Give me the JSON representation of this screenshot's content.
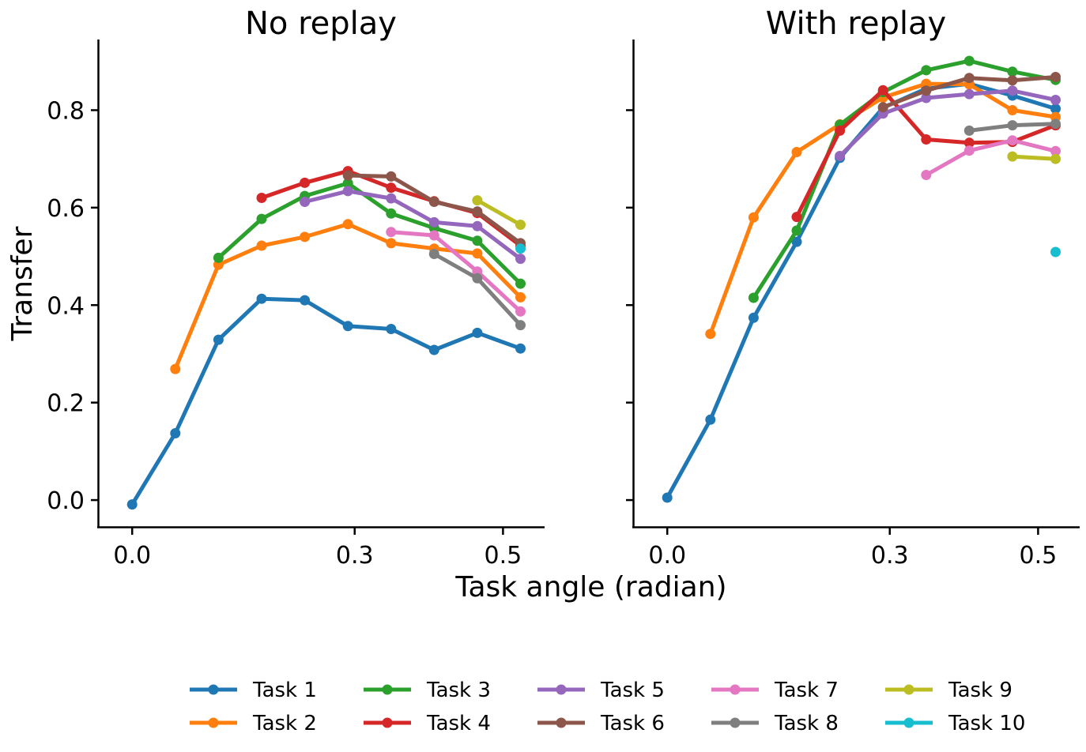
{
  "chart_data": {
    "type": "line",
    "xlabel": "Task angle (radian)",
    "ylabel": "Transfer",
    "xlim": [
      -0.045,
      0.555
    ],
    "ylim": [
      -0.055,
      0.945
    ],
    "xticks": [
      0.0,
      0.3,
      0.5
    ],
    "xtick_labels": [
      "0.0",
      "0.3",
      "0.5"
    ],
    "yticks": [
      0.0,
      0.2,
      0.4,
      0.6,
      0.8
    ],
    "ytick_labels": [
      "0.0",
      "0.2",
      "0.4",
      "0.6",
      "0.8"
    ],
    "sharey": true,
    "grid": false,
    "legend_position": "bottom-center",
    "legend_columns": 5,
    "x": [
      0.0,
      0.0582,
      0.1164,
      0.1745,
      0.2327,
      0.2909,
      0.3491,
      0.4072,
      0.4654,
      0.5236
    ],
    "series_styles": [
      {
        "name": "Task 1",
        "color": "#1f77b4"
      },
      {
        "name": "Task 2",
        "color": "#ff7f0e"
      },
      {
        "name": "Task 3",
        "color": "#2ca02c"
      },
      {
        "name": "Task 4",
        "color": "#d62728"
      },
      {
        "name": "Task 5",
        "color": "#9467bd"
      },
      {
        "name": "Task 6",
        "color": "#8c564b"
      },
      {
        "name": "Task 7",
        "color": "#e377c2"
      },
      {
        "name": "Task 8",
        "color": "#7f7f7f"
      },
      {
        "name": "Task 9",
        "color": "#bcbd22"
      },
      {
        "name": "Task 10",
        "color": "#17becf"
      }
    ],
    "panels": [
      {
        "title": "No replay",
        "series": [
          {
            "name": "Task 1",
            "start": 0,
            "values": [
              -0.009,
              0.137,
              0.329,
              0.413,
              0.41,
              0.357,
              0.351,
              0.308,
              0.343,
              0.311
            ]
          },
          {
            "name": "Task 2",
            "start": 1,
            "values": [
              0.269,
              0.483,
              0.522,
              0.54,
              0.566,
              0.527,
              0.516,
              0.506,
              0.416
            ]
          },
          {
            "name": "Task 3",
            "start": 2,
            "values": [
              0.497,
              0.577,
              0.624,
              0.65,
              0.588,
              0.558,
              0.532,
              0.444
            ]
          },
          {
            "name": "Task 4",
            "start": 3,
            "values": [
              0.62,
              0.651,
              0.675,
              0.641,
              0.613,
              0.589,
              0.522
            ]
          },
          {
            "name": "Task 5",
            "start": 4,
            "values": [
              0.612,
              0.634,
              0.619,
              0.57,
              0.562,
              0.495
            ]
          },
          {
            "name": "Task 6",
            "start": 5,
            "values": [
              0.666,
              0.664,
              0.612,
              0.592,
              0.527
            ]
          },
          {
            "name": "Task 7",
            "start": 6,
            "values": [
              0.55,
              0.543,
              0.469,
              0.387
            ]
          },
          {
            "name": "Task 8",
            "start": 7,
            "values": [
              0.505,
              0.455,
              0.359
            ]
          },
          {
            "name": "Task 9",
            "start": 8,
            "values": [
              0.615,
              0.565
            ]
          },
          {
            "name": "Task 10",
            "start": 9,
            "values": [
              0.516
            ]
          }
        ]
      },
      {
        "title": "With replay",
        "series": [
          {
            "name": "Task 1",
            "start": 0,
            "values": [
              0.005,
              0.165,
              0.374,
              0.53,
              0.702,
              0.805,
              0.844,
              0.854,
              0.83,
              0.803
            ]
          },
          {
            "name": "Task 2",
            "start": 1,
            "values": [
              0.341,
              0.58,
              0.714,
              0.771,
              0.826,
              0.854,
              0.853,
              0.8,
              0.786
            ]
          },
          {
            "name": "Task 3",
            "start": 2,
            "values": [
              0.415,
              0.553,
              0.77,
              0.837,
              0.882,
              0.901,
              0.879,
              0.862
            ]
          },
          {
            "name": "Task 4",
            "start": 3,
            "values": [
              0.581,
              0.758,
              0.841,
              0.74,
              0.733,
              0.735,
              0.769
            ]
          },
          {
            "name": "Task 5",
            "start": 4,
            "values": [
              0.706,
              0.793,
              0.825,
              0.833,
              0.84,
              0.821
            ]
          },
          {
            "name": "Task 6",
            "start": 5,
            "values": [
              0.806,
              0.84,
              0.866,
              0.861,
              0.868
            ]
          },
          {
            "name": "Task 7",
            "start": 6,
            "values": [
              0.667,
              0.717,
              0.738,
              0.716
            ]
          },
          {
            "name": "Task 8",
            "start": 7,
            "values": [
              0.758,
              0.769,
              0.772
            ]
          },
          {
            "name": "Task 9",
            "start": 8,
            "values": [
              0.705,
              0.7
            ]
          },
          {
            "name": "Task 10",
            "start": 9,
            "values": [
              0.509
            ]
          }
        ]
      }
    ]
  }
}
